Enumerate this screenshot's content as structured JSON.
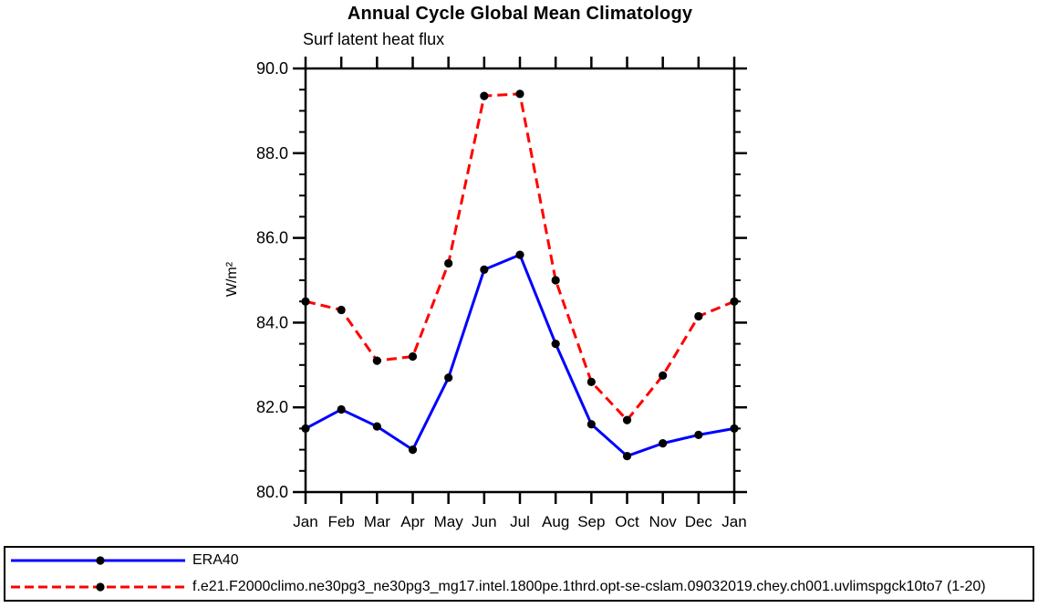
{
  "chart_data": {
    "type": "line",
    "title": "Annual Cycle Global Mean Climatology",
    "subtitle": "Surf latent heat flux",
    "ylabel": "W/m²",
    "xlabel": "",
    "categories": [
      "Jan",
      "Feb",
      "Mar",
      "Apr",
      "May",
      "Jun",
      "Jul",
      "Aug",
      "Sep",
      "Oct",
      "Nov",
      "Dec",
      "Jan"
    ],
    "ylim": [
      80.0,
      90.0
    ],
    "ytick_major": [
      80.0,
      82.0,
      84.0,
      86.0,
      88.0,
      90.0
    ],
    "ytick_minor_step": 0.5,
    "grid": false,
    "axis_color": "#000000",
    "legend_position": "bottom-box",
    "series": [
      {
        "name": "ERA40",
        "color": "#0000ff",
        "line_style": "solid",
        "marker": "filled-circle",
        "marker_color": "#000000",
        "values": [
          81.5,
          81.95,
          81.55,
          81.0,
          82.7,
          85.25,
          85.6,
          83.5,
          81.6,
          80.85,
          81.15,
          81.35,
          81.5
        ]
      },
      {
        "name": "f.e21.F2000climo.ne30pg3_ne30pg3_mg17.intel.1800pe.1thrd.opt-se-cslam.09032019.chey.ch001.uvlimspgck10to7 (1-20)",
        "color": "#ff0000",
        "line_style": "dashed",
        "marker": "filled-circle",
        "marker_color": "#000000",
        "values": [
          84.5,
          84.3,
          83.1,
          83.2,
          85.4,
          89.35,
          89.4,
          85.0,
          82.6,
          81.7,
          82.75,
          84.15,
          84.5
        ]
      }
    ]
  }
}
